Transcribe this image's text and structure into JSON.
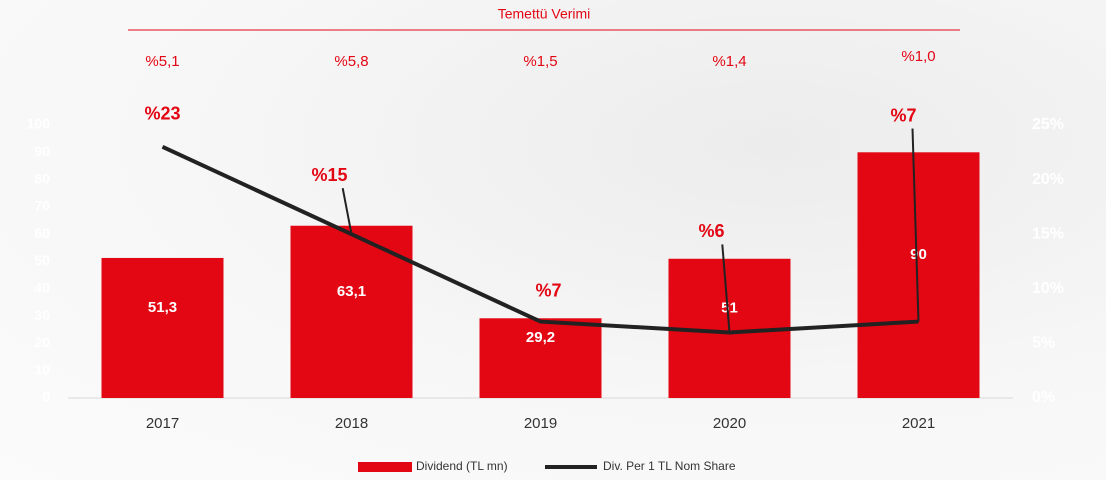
{
  "chart_data": {
    "type": "bar-line",
    "subtitle": "Temettü Verimi",
    "yield_labels": [
      "%5,1",
      "%5,8",
      "%1,5",
      "%1,4",
      "%1,0"
    ],
    "categories": [
      "2017",
      "2018",
      "2019",
      "2020",
      "2021"
    ],
    "series": [
      {
        "name": "Dividend (TL mn)",
        "color": "#e30613",
        "values": [
          51.3,
          63.1,
          29.2,
          51,
          90
        ],
        "value_labels": [
          "51,3",
          "63,1",
          "29,2",
          "51",
          "90"
        ]
      },
      {
        "name": "Div. Per 1 TL Nom Share",
        "color": "#222222",
        "axis": "y2",
        "values": [
          23,
          15,
          7,
          6,
          7
        ],
        "value_labels": [
          "%23",
          "%15",
          "%7",
          "%6",
          "%7"
        ]
      }
    ],
    "ylim": [
      0,
      100
    ],
    "yticks": [
      0,
      10,
      20,
      30,
      40,
      50,
      60,
      70,
      80,
      90,
      100
    ],
    "y2lim": [
      0,
      25
    ],
    "y2ticks": [
      {
        "value": 0,
        "label": "0%"
      },
      {
        "value": 5,
        "label": "5%"
      },
      {
        "value": 10,
        "label": "10%"
      },
      {
        "value": 15,
        "label": "15%"
      },
      {
        "value": 20,
        "label": "20%"
      },
      {
        "value": 25,
        "label": "25%"
      }
    ]
  }
}
